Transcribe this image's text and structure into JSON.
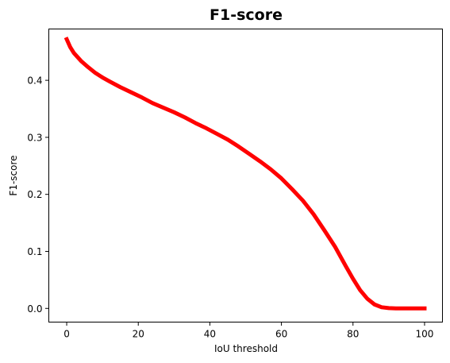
{
  "chart_data": {
    "type": "line",
    "title": "F1-score",
    "xlabel": "IoU threshold",
    "ylabel": "F1-score",
    "xlim": [
      -5,
      105
    ],
    "ylim": [
      -0.024,
      0.49
    ],
    "xticks": [
      0,
      20,
      40,
      60,
      80,
      100
    ],
    "yticks": [
      0.0,
      0.1,
      0.2,
      0.3,
      0.4
    ],
    "xtick_labels": [
      "0",
      "20",
      "40",
      "60",
      "80",
      "100"
    ],
    "ytick_labels": [
      "0.0",
      "0.1",
      "0.2",
      "0.3",
      "0.4"
    ],
    "grid": false,
    "legend": "none",
    "series": [
      {
        "color": "#ff0000",
        "x": [
          0,
          1,
          2,
          4,
          6,
          8,
          10,
          12,
          15,
          18,
          21,
          24,
          27,
          30,
          33,
          36,
          39,
          42,
          45,
          48,
          51,
          54,
          57,
          60,
          63,
          66,
          69,
          72,
          75,
          78,
          80,
          82,
          84,
          86,
          88,
          90,
          92,
          94,
          96,
          98,
          100
        ],
        "y": [
          0.472,
          0.458,
          0.448,
          0.434,
          0.423,
          0.413,
          0.405,
          0.398,
          0.388,
          0.379,
          0.37,
          0.36,
          0.352,
          0.344,
          0.335,
          0.325,
          0.316,
          0.306,
          0.296,
          0.284,
          0.271,
          0.258,
          0.244,
          0.228,
          0.209,
          0.189,
          0.165,
          0.137,
          0.108,
          0.074,
          0.052,
          0.032,
          0.017,
          0.007,
          0.002,
          0.0005,
          0.0,
          0.0,
          0.0,
          0.0,
          0.0
        ]
      }
    ]
  }
}
